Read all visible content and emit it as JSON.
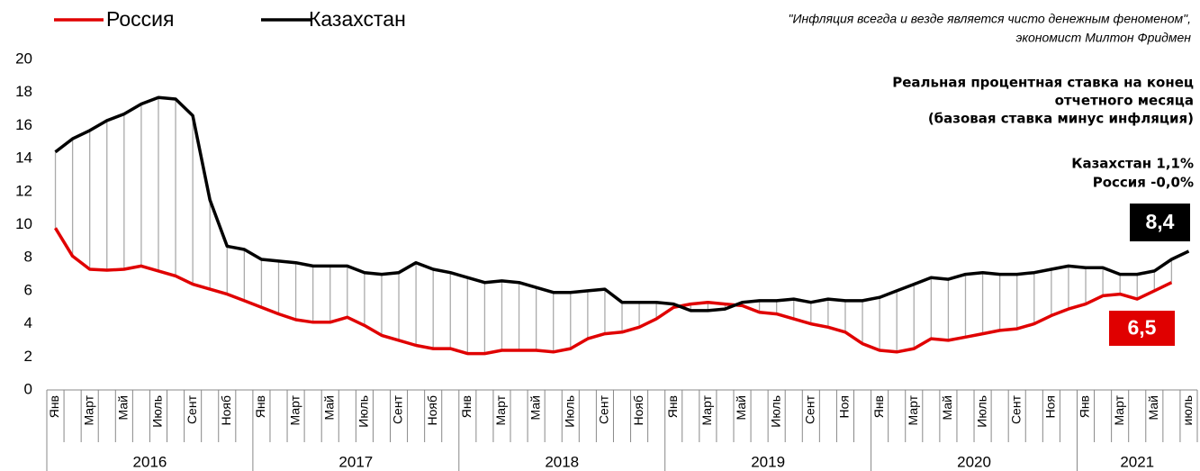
{
  "chart_data": {
    "type": "line",
    "quote": [
      "\"Инфляция всегда и везде является чисто денежным феноменом\",",
      "экономист Милтон Фридмен"
    ],
    "title": [
      "Реальная процентная ставка на конец",
      "отчетного месяца",
      "(базовая ставка минус инфляция)"
    ],
    "notes": [
      "Казахстан 1,1%",
      "Россия -0,0%"
    ],
    "categories": [
      "Янв",
      null,
      "Март",
      null,
      "Май",
      null,
      "Июль",
      null,
      "Сент",
      null,
      "Нояб",
      null,
      "Янв",
      null,
      "Март",
      null,
      "Май",
      null,
      "Июль",
      null,
      "Сент",
      null,
      "Нояб",
      null,
      "Янв",
      null,
      "Март",
      null,
      "Май",
      null,
      "Июль",
      null,
      "Сент",
      null,
      "Нояб",
      null,
      "Янв",
      null,
      "Март",
      null,
      "Май",
      null,
      "Июль",
      null,
      "Сент",
      null,
      "Ноя",
      null,
      "Янв",
      null,
      "Март",
      null,
      "Май",
      null,
      "Июль",
      null,
      "Сент",
      null,
      "Ноя",
      null,
      "Янв",
      null,
      "Март",
      null,
      "Май",
      null,
      "июль"
    ],
    "years": [
      "2016",
      "2017",
      "2018",
      "2019",
      "2020",
      "2021"
    ],
    "series": [
      {
        "name": "Россия",
        "color": "#e00000",
        "end_label": "6,5",
        "values": [
          9.8,
          8.1,
          7.3,
          7.25,
          7.3,
          7.5,
          7.2,
          6.9,
          6.4,
          6.1,
          5.8,
          5.4,
          5.0,
          4.6,
          4.25,
          4.1,
          4.1,
          4.4,
          3.9,
          3.3,
          3.0,
          2.7,
          2.5,
          2.5,
          2.2,
          2.2,
          2.4,
          2.4,
          2.4,
          2.3,
          2.5,
          3.1,
          3.4,
          3.5,
          3.8,
          4.3,
          5.0,
          5.2,
          5.3,
          5.2,
          5.1,
          4.7,
          4.6,
          4.3,
          4.0,
          3.8,
          3.5,
          2.8,
          2.4,
          2.3,
          2.5,
          3.1,
          3.0,
          3.2,
          3.4,
          3.6,
          3.7,
          4.0,
          4.5,
          4.9,
          5.2,
          5.7,
          5.8,
          5.5,
          6.0,
          6.5,
          null
        ]
      },
      {
        "name": "Казахстан",
        "color": "#000000",
        "end_label": "8,4",
        "values": [
          14.4,
          15.2,
          15.7,
          16.3,
          16.7,
          17.3,
          17.7,
          17.6,
          16.6,
          11.5,
          8.7,
          8.5,
          7.9,
          7.8,
          7.7,
          7.5,
          7.5,
          7.5,
          7.1,
          7.0,
          7.1,
          7.7,
          7.3,
          7.1,
          6.8,
          6.5,
          6.6,
          6.5,
          6.2,
          5.9,
          5.9,
          6.0,
          6.1,
          5.3,
          5.3,
          5.3,
          5.2,
          4.8,
          4.8,
          4.9,
          5.3,
          5.4,
          5.4,
          5.5,
          5.3,
          5.5,
          5.4,
          5.4,
          5.6,
          6.0,
          6.4,
          6.8,
          6.7,
          7.0,
          7.1,
          7.0,
          7.0,
          7.1,
          7.3,
          7.5,
          7.4,
          7.4,
          7.0,
          7.0,
          7.2,
          7.9,
          8.4
        ]
      }
    ],
    "ylim": [
      0,
      20
    ],
    "yticks": [
      0,
      2,
      4,
      6,
      8,
      10,
      12,
      14,
      16,
      18,
      20
    ]
  }
}
